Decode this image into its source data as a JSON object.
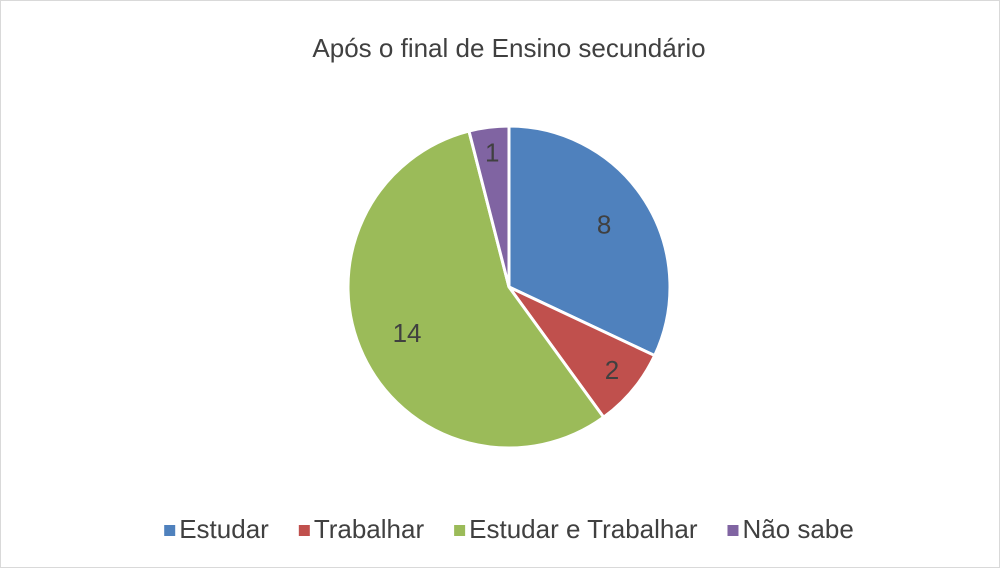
{
  "chart_data": {
    "type": "pie",
    "title": "Após o final de Ensino secundário",
    "categories": [
      "Estudar",
      "Trabalhar",
      "Estudar e Trabalhar",
      "Não sabe"
    ],
    "values": [
      8,
      2,
      14,
      1
    ],
    "colors": [
      "#4f81bd",
      "#c0504d",
      "#9bbb59",
      "#8064a2"
    ],
    "legend": "bottom"
  }
}
